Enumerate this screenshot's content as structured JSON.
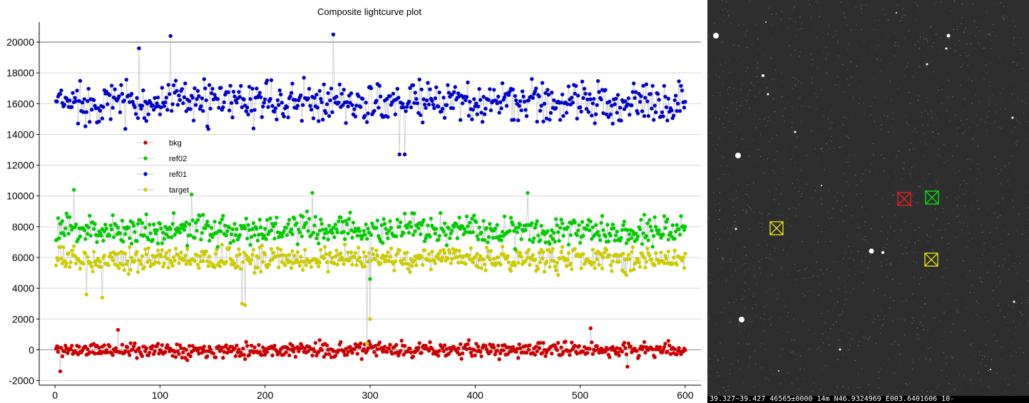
{
  "plot": {
    "title": "Composite lightcurve plot"
  },
  "chart_data": {
    "type": "scatter",
    "title": "Composite lightcurve plot",
    "xlabel": "",
    "ylabel": "",
    "xlim": [
      -15,
      615
    ],
    "ylim": [
      -2300,
      21300
    ],
    "x_ticks": [
      0,
      100,
      200,
      300,
      400,
      500,
      600
    ],
    "y_ticks": [
      -2000,
      0,
      2000,
      4000,
      6000,
      8000,
      10000,
      12000,
      14000,
      16000,
      18000,
      20000
    ],
    "grid": "horizontal",
    "legend_position": "left",
    "point_count": 600,
    "x_range": [
      1,
      600
    ],
    "series": [
      {
        "name": "bkg",
        "color": "#cc0000",
        "mean": 0,
        "spread": 450,
        "extremes": [
          [
            5,
            -1400
          ],
          [
            60,
            1300
          ],
          [
            298,
            100
          ],
          [
            510,
            1400
          ],
          [
            545,
            -1100
          ]
        ]
      },
      {
        "name": "ref02",
        "color": "#00cc00",
        "mean": 7800,
        "spread": 900,
        "extremes": [
          [
            18,
            10400
          ],
          [
            130,
            10100
          ],
          [
            245,
            10200
          ],
          [
            300,
            4600
          ],
          [
            450,
            10200
          ]
        ]
      },
      {
        "name": "ref01",
        "color": "#0000cc",
        "mean": 16100,
        "spread": 1250,
        "extremes": [
          [
            110,
            20400
          ],
          [
            265,
            20500
          ],
          [
            297,
            14800
          ],
          [
            328,
            12700
          ],
          [
            333,
            12700
          ],
          [
            80,
            19600
          ]
        ]
      },
      {
        "name": "target",
        "color": "#cccc00",
        "mean": 5900,
        "spread": 700,
        "extremes": [
          [
            178,
            3000
          ],
          [
            181,
            2900
          ],
          [
            297,
            400
          ],
          [
            300,
            2000
          ],
          [
            45,
            3400
          ],
          [
            30,
            3600
          ]
        ]
      }
    ]
  },
  "image_view": {
    "status_text": "39.327~39.427 46565±0000  14m N46.9324969 E003.6401606 10-",
    "markers": [
      {
        "label": "target",
        "color": "#ffff00"
      },
      {
        "label": "ref01",
        "color": "#ff2020"
      },
      {
        "label": "ref02",
        "color": "#00ff00"
      },
      {
        "label": "target",
        "color": "#ffff00"
      }
    ]
  }
}
